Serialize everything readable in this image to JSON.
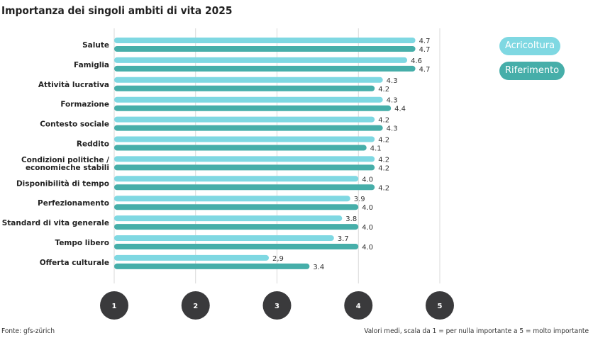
{
  "title": "Importanza dei singoli ambiti di vita 2025",
  "legend": {
    "series1": "Acricoltura",
    "series2": "Riferimento"
  },
  "source": "Fonte: gfs-zürich",
  "note": "Valori medi, scala da 1 = per nulla importante a 5 = molto importante",
  "colors": {
    "series1": "#7fd8e2",
    "series2": "#46aea9",
    "axis_circle": "#3a3a3c",
    "grid": "#d9d9d9"
  },
  "chart_data": {
    "type": "bar",
    "orientation": "horizontal",
    "title": "Importanza dei singoli ambiti di vita 2025",
    "categories": [
      "Salute",
      "Famiglia",
      "Attività lucrativa",
      "Formazione",
      "Contesto sociale",
      "Reddito",
      "Condizioni politiche / economieche stabili",
      "Disponibilità di tempo",
      "Perfezionamento",
      "Standard di vita generale",
      "Tempo libero",
      "Offerta culturale"
    ],
    "series": [
      {
        "name": "Acricoltura",
        "values": [
          4.7,
          4.6,
          4.3,
          4.3,
          4.2,
          4.2,
          4.2,
          4.0,
          3.9,
          3.8,
          3.7,
          2.9
        ],
        "labels": [
          "4.7",
          "4.6",
          "4.3",
          "4.3",
          "4.2",
          "4.2",
          "4.2",
          "4.0",
          "3.9",
          "3.8",
          "3.7",
          "2,9"
        ]
      },
      {
        "name": "Riferimento",
        "values": [
          4.7,
          4.7,
          4.2,
          4.4,
          4.3,
          4.1,
          4.2,
          4.2,
          4.0,
          4.0,
          4.0,
          3.4
        ],
        "labels": [
          "4.7",
          "4.7",
          "4.2",
          "4.4",
          "4.3",
          "4.1",
          "4.2",
          "4.2",
          "4.0",
          "4.0",
          "4.0",
          "3.4"
        ]
      }
    ],
    "xlim": [
      1,
      5
    ],
    "xticks": [
      "1",
      "2",
      "3",
      "4",
      "5"
    ],
    "grid": true,
    "legend_position": "top-right"
  }
}
